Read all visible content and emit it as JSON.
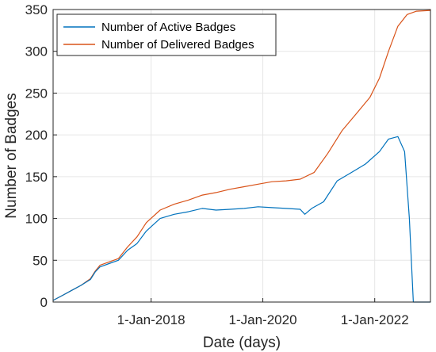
{
  "chart_data": {
    "type": "line",
    "xlabel": "Date (days)",
    "ylabel": "Number of Badges",
    "xlim": [
      "2016-04-01",
      "2022-12-31"
    ],
    "ylim": [
      0,
      350
    ],
    "yticks": [
      0,
      50,
      100,
      150,
      200,
      250,
      300,
      350
    ],
    "xticks": [
      {
        "date": "2018-01-01",
        "label": "1-Jan-2018"
      },
      {
        "date": "2020-01-01",
        "label": "1-Jan-2020"
      },
      {
        "date": "2022-01-01",
        "label": "1-Jan-2022"
      }
    ],
    "grid": true,
    "legend_position": "top-left",
    "series": [
      {
        "name": "Number of Active Badges",
        "color": "#0072BD",
        "points": [
          [
            "2016-04-01",
            2
          ],
          [
            "2016-06-01",
            8
          ],
          [
            "2016-08-01",
            14
          ],
          [
            "2016-10-01",
            20
          ],
          [
            "2016-12-01",
            27
          ],
          [
            "2017-01-01",
            36
          ],
          [
            "2017-02-01",
            42
          ],
          [
            "2017-04-01",
            46
          ],
          [
            "2017-06-01",
            50
          ],
          [
            "2017-08-01",
            62
          ],
          [
            "2017-10-01",
            70
          ],
          [
            "2017-12-01",
            85
          ],
          [
            "2018-03-01",
            100
          ],
          [
            "2018-06-01",
            105
          ],
          [
            "2018-09-01",
            108
          ],
          [
            "2018-12-01",
            112
          ],
          [
            "2019-03-01",
            110
          ],
          [
            "2019-06-01",
            111
          ],
          [
            "2019-09-01",
            112
          ],
          [
            "2019-12-01",
            114
          ],
          [
            "2020-03-01",
            113
          ],
          [
            "2020-06-01",
            112
          ],
          [
            "2020-09-01",
            111
          ],
          [
            "2020-10-01",
            105
          ],
          [
            "2020-11-15",
            112
          ],
          [
            "2021-02-01",
            120
          ],
          [
            "2021-05-01",
            145
          ],
          [
            "2021-08-01",
            155
          ],
          [
            "2021-11-01",
            165
          ],
          [
            "2022-02-01",
            180
          ],
          [
            "2022-04-01",
            195
          ],
          [
            "2022-06-01",
            198
          ],
          [
            "2022-07-15",
            180
          ],
          [
            "2022-08-15",
            100
          ],
          [
            "2022-09-10",
            0
          ],
          [
            "2022-12-31",
            0
          ]
        ]
      },
      {
        "name": "Number of Delivered Badges",
        "color": "#D95319",
        "points": [
          [
            "2016-04-01",
            2
          ],
          [
            "2016-06-01",
            8
          ],
          [
            "2016-08-01",
            14
          ],
          [
            "2016-10-01",
            20
          ],
          [
            "2016-12-01",
            28
          ],
          [
            "2017-01-01",
            37
          ],
          [
            "2017-02-01",
            44
          ],
          [
            "2017-04-01",
            48
          ],
          [
            "2017-06-01",
            52
          ],
          [
            "2017-08-01",
            66
          ],
          [
            "2017-10-01",
            78
          ],
          [
            "2017-12-01",
            95
          ],
          [
            "2018-03-01",
            110
          ],
          [
            "2018-06-01",
            117
          ],
          [
            "2018-09-01",
            122
          ],
          [
            "2018-12-01",
            128
          ],
          [
            "2019-03-01",
            131
          ],
          [
            "2019-06-01",
            135
          ],
          [
            "2019-09-01",
            138
          ],
          [
            "2019-12-01",
            141
          ],
          [
            "2020-03-01",
            144
          ],
          [
            "2020-06-01",
            145
          ],
          [
            "2020-09-01",
            147
          ],
          [
            "2020-12-01",
            155
          ],
          [
            "2021-03-01",
            178
          ],
          [
            "2021-06-01",
            205
          ],
          [
            "2021-09-01",
            225
          ],
          [
            "2021-12-01",
            245
          ],
          [
            "2022-02-01",
            268
          ],
          [
            "2022-04-01",
            300
          ],
          [
            "2022-06-01",
            330
          ],
          [
            "2022-08-01",
            344
          ],
          [
            "2022-10-01",
            348
          ],
          [
            "2022-12-31",
            349
          ]
        ]
      }
    ]
  }
}
